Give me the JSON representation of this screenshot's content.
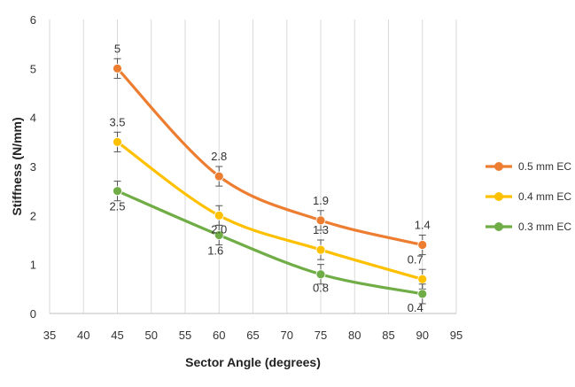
{
  "chart_data": {
    "type": "line",
    "title": "",
    "xlabel": "Sector Angle (degrees)",
    "ylabel": "Stiffness (N/mm)",
    "xlim": [
      35,
      95
    ],
    "ylim": [
      0,
      6
    ],
    "x_ticks": [
      "35",
      "40",
      "45",
      "50",
      "55",
      "60",
      "65",
      "70",
      "75",
      "80",
      "85",
      "90",
      "95"
    ],
    "y_ticks": [
      "0",
      "1",
      "2",
      "3",
      "4",
      "5",
      "6"
    ],
    "grid": "vertical",
    "legend_position": "right",
    "smooth": true,
    "error_bars": true,
    "series": [
      {
        "name": "0.5 mm EC",
        "color": "#ED7D31",
        "x": [
          45,
          60,
          75,
          90
        ],
        "values": [
          5.0,
          2.8,
          1.9,
          1.4
        ],
        "error": [
          0.2,
          0.2,
          0.2,
          0.2
        ],
        "labels": [
          "5",
          "2.8",
          "1.9",
          "1.4"
        ]
      },
      {
        "name": "0.4 mm EC",
        "color": "#FFC000",
        "x": [
          45,
          60,
          75,
          90
        ],
        "values": [
          3.5,
          2.0,
          1.3,
          0.7
        ],
        "error": [
          0.2,
          0.2,
          0.2,
          0.2
        ],
        "labels": [
          "3.5",
          "2.0",
          "1.3",
          "0.7"
        ]
      },
      {
        "name": "0.3 mm EC",
        "color": "#70AD47",
        "x": [
          45,
          60,
          75,
          90
        ],
        "values": [
          2.5,
          1.6,
          0.8,
          0.4
        ],
        "error": [
          0.2,
          0.2,
          0.2,
          0.2
        ],
        "labels": [
          "2.5",
          "1.6",
          "0.8",
          "0.4"
        ]
      }
    ]
  }
}
